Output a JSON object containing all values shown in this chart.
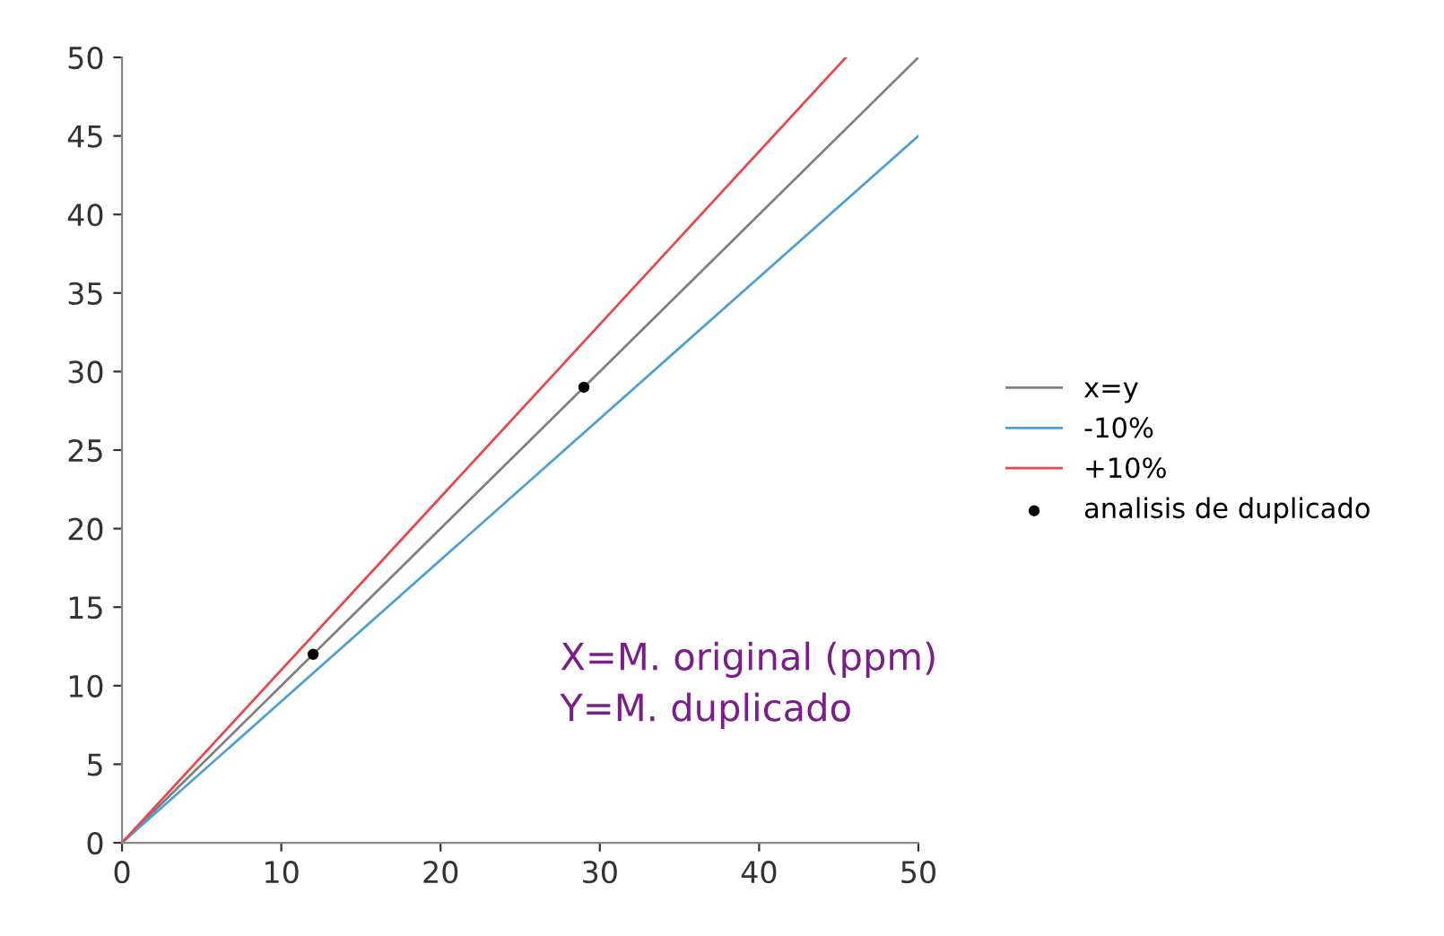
{
  "chart_data": {
    "type": "line",
    "xlim": [
      0,
      50
    ],
    "ylim": [
      0,
      50
    ],
    "xticks": [
      0,
      10,
      20,
      30,
      40,
      50
    ],
    "yticks": [
      0,
      5,
      10,
      15,
      20,
      25,
      30,
      35,
      40,
      45,
      50
    ],
    "grid": false,
    "legend": "right",
    "marker": "none",
    "series": [
      {
        "name": "x=y",
        "color": "#808080",
        "x": [
          0,
          50
        ],
        "values": [
          0,
          50
        ]
      },
      {
        "name": "-10%",
        "color": "#4f9fd6",
        "x": [
          0,
          50
        ],
        "values": [
          0,
          45
        ]
      },
      {
        "name": "+10%",
        "color": "#e8474b",
        "x": [
          0,
          45.45
        ],
        "values": [
          0,
          50
        ]
      },
      {
        "name": "analisis de duplicado",
        "type": "scatter",
        "marker": "circle",
        "color": "#000000",
        "x": [
          12,
          29
        ],
        "values": [
          12,
          29
        ]
      }
    ],
    "annotations": [
      "X=M. original (ppm)",
      "Y=M. duplicado"
    ]
  }
}
